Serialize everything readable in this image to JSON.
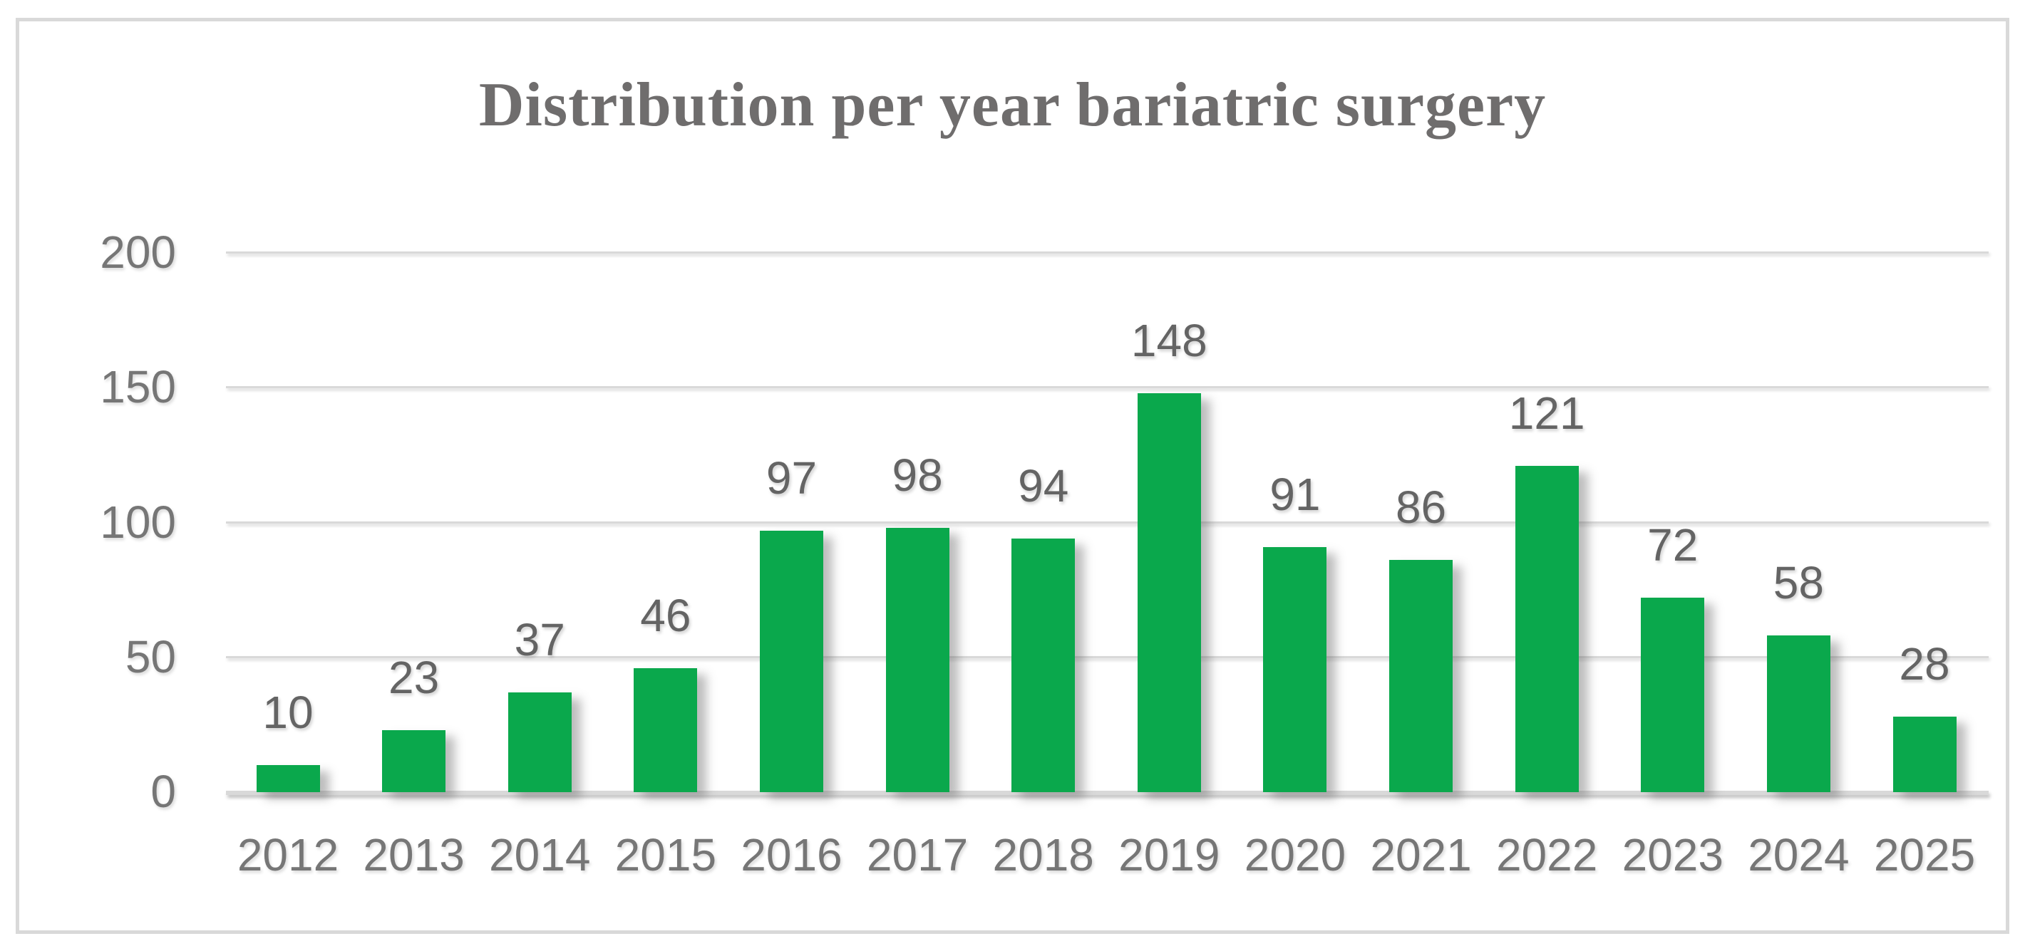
{
  "chart_data": {
    "type": "bar",
    "title": "Distribution per year bariatric surgery",
    "categories": [
      "2012",
      "2013",
      "2014",
      "2015",
      "2016",
      "2017",
      "2018",
      "2019",
      "2020",
      "2021",
      "2022",
      "2023",
      "2024",
      "2025"
    ],
    "values": [
      10,
      23,
      37,
      46,
      97,
      98,
      94,
      148,
      91,
      86,
      121,
      72,
      58,
      28
    ],
    "data_labels": [
      10,
      23,
      37,
      46,
      97,
      98,
      94,
      148,
      91,
      86,
      121,
      72,
      58,
      28
    ],
    "xlabel": "",
    "ylabel": "",
    "ylim": [
      0,
      200
    ],
    "yticks": [
      0,
      50,
      100,
      150,
      200
    ],
    "grid": true,
    "legend": false,
    "bar_color": "#0aa84c",
    "gridline_color": "#d9d9d9",
    "title_color": "#6f6d6d",
    "axis_label_color": "#767676",
    "data_label_color": "#646464",
    "frame_border_color": "#d9d9d9",
    "background_color": "#ffffff"
  }
}
